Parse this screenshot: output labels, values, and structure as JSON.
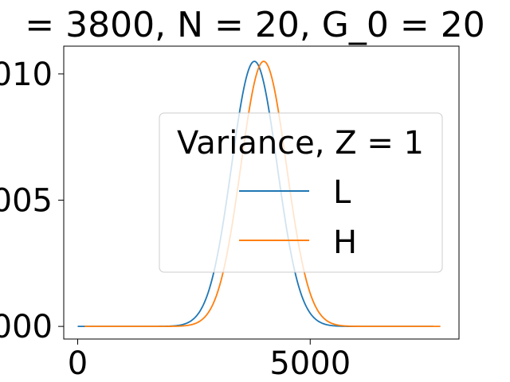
{
  "chart_data": {
    "type": "line",
    "title": "= 3800, N = 20, G_0 = 20",
    "xlabel": "",
    "ylabel": "",
    "xlim": [
      -300,
      8200
    ],
    "ylim": [
      -0.0005,
      0.0111
    ],
    "xticks": [
      0,
      5000
    ],
    "xtick_labels": [
      "0",
      "5000"
    ],
    "yticks": [
      0.0,
      0.005,
      0.01
    ],
    "ytick_labels": [
      "000",
      "005",
      "010"
    ],
    "grid": false,
    "legend": {
      "title": "Variance, Z = 1",
      "placement": "center-right"
    },
    "series": [
      {
        "name": "L",
        "color": "#1f77b4",
        "x_range": [
          0,
          7650
        ],
        "peak_x": 3800,
        "peak_y": 0.0105,
        "sigma": 490
      },
      {
        "name": "H",
        "color": "#ff7f0e",
        "x_range": [
          150,
          7800
        ],
        "peak_x": 4000,
        "peak_y": 0.0105,
        "sigma": 490
      }
    ]
  }
}
